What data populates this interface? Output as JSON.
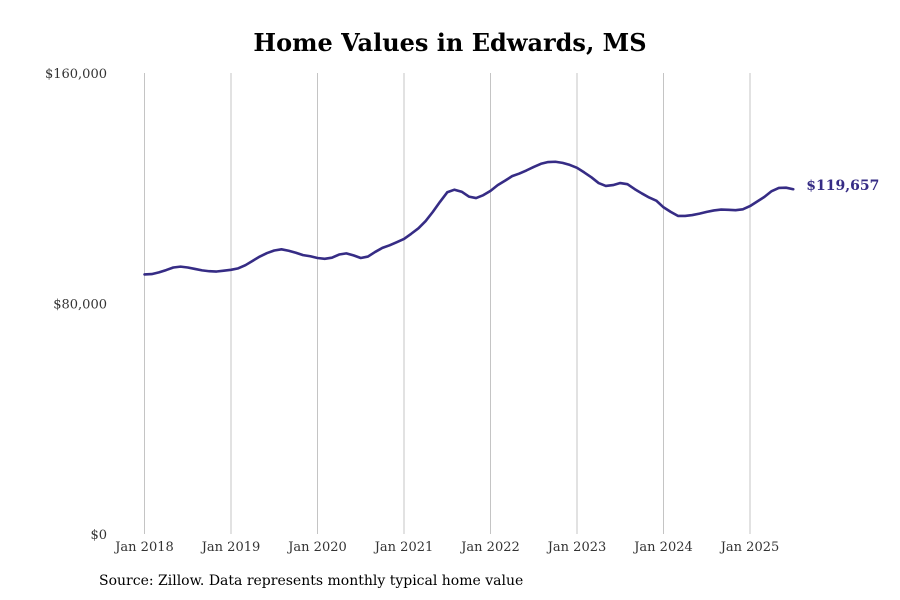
{
  "chart_data": {
    "type": "line",
    "title": "Home Values in Edwards, MS",
    "xlabel": "",
    "ylabel": "",
    "x_tick_labels": [
      "Jan 2018",
      "Jan 2019",
      "Jan 2020",
      "Jan 2021",
      "Jan 2022",
      "Jan 2023",
      "Jan 2024",
      "Jan 2025"
    ],
    "y_tick_labels": [
      "$0",
      "$80,000",
      "$160,000"
    ],
    "y_ticks": [
      0,
      80000,
      160000
    ],
    "ylim": [
      0,
      160000
    ],
    "x_start": "2018-01",
    "grid": "vertical gridlines at each January",
    "line_color": "#362c85",
    "end_label": "$119,657",
    "series": [
      {
        "values": [
          90100,
          90200,
          90800,
          91600,
          92500,
          92800,
          92500,
          92000,
          91500,
          91200,
          91100,
          91400,
          91700,
          92200,
          93300,
          94800,
          96300,
          97500,
          98400,
          98800,
          98300,
          97600,
          96800,
          96400,
          95800,
          95500,
          95900,
          97000,
          97400,
          96700,
          95800,
          96300,
          97900,
          99300,
          100200,
          101300,
          102400,
          104200,
          106100,
          108600,
          111800,
          115300,
          118600,
          119500,
          118800,
          117100,
          116600,
          117600,
          119100,
          121100,
          122600,
          124200,
          125100,
          126200,
          127400,
          128500,
          129100,
          129200,
          128800,
          128100,
          127100,
          125500,
          123800,
          121800,
          120800,
          121100,
          121800,
          121400,
          119700,
          118200,
          116800,
          115700,
          113400,
          111800,
          110400,
          110400,
          110700,
          111200,
          111800,
          112300,
          112600,
          112500,
          112400,
          112700,
          113800,
          115400,
          117000,
          119000,
          120100,
          120200,
          119657
        ]
      }
    ]
  },
  "source_note": "Source: Zillow. Data represents monthly typical home value"
}
